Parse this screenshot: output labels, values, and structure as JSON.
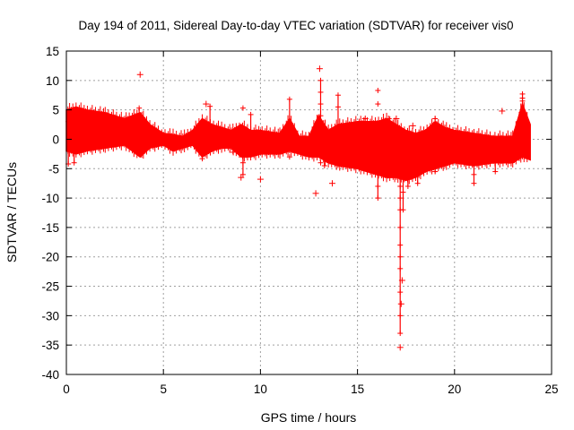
{
  "chart_data": {
    "type": "scatter",
    "title": "Day 194 of 2011, Sidereal Day-to-day VTEC variation (SDTVAR) for receiver vis0",
    "xlabel": "GPS time / hours",
    "ylabel": "SDTVAR / TECUs",
    "xlim": [
      0,
      25
    ],
    "ylim": [
      -40,
      15
    ],
    "xticks": [
      0,
      5,
      10,
      15,
      20,
      25
    ],
    "yticks": [
      15,
      10,
      5,
      0,
      -5,
      -10,
      -15,
      -20,
      -25,
      -30,
      -35,
      -40
    ],
    "grid": true,
    "marker": "+",
    "color": "#ff0000",
    "series": [
      {
        "name": "SDTVAR",
        "envelope": {
          "x": [
            0,
            0.5,
            1,
            2,
            3,
            3.8,
            4.3,
            5,
            5.5,
            6,
            6.5,
            7,
            7.5,
            8,
            8.5,
            9,
            9.5,
            10,
            11,
            11.5,
            12,
            12.5,
            13,
            13.5,
            14,
            15,
            15.5,
            16,
            16.5,
            17,
            17.5,
            18,
            18.5,
            19,
            19.5,
            20,
            21,
            22,
            23,
            23.5,
            23.9
          ],
          "upper": [
            5,
            5.5,
            5,
            4.5,
            3.5,
            4.5,
            2.5,
            1,
            0.8,
            0.5,
            1.5,
            3.5,
            2.5,
            2,
            1.5,
            2.5,
            1.5,
            1.5,
            1,
            3.5,
            0.5,
            0.5,
            4,
            1.5,
            2.5,
            3,
            3,
            3,
            3.5,
            2.5,
            1.5,
            1,
            1.5,
            3,
            2,
            1.5,
            1,
            0.5,
            0.5,
            6,
            2.5
          ],
          "lower": [
            -2,
            -2.5,
            -2,
            -1.5,
            -1,
            -3,
            -1.5,
            -1,
            -2,
            -1.5,
            -1,
            -3,
            -2,
            -1.5,
            -1.5,
            -3,
            -3,
            -2.5,
            -2.5,
            -2,
            -2.5,
            -3,
            -3,
            -4,
            -4.5,
            -5,
            -5.5,
            -6,
            -6.5,
            -6.5,
            -7,
            -6.5,
            -5.5,
            -5,
            -4.5,
            -4,
            -4.5,
            -4,
            -4,
            -3,
            -3.5
          ]
        },
        "spikes": [
          {
            "x": 0.1,
            "values": [
              -4.2,
              3.0
            ]
          },
          {
            "x": 0.4,
            "values": [
              -4.0
            ]
          },
          {
            "x": 3.75,
            "values": [
              5.3,
              -2.5
            ]
          },
          {
            "x": 7.0,
            "values": [
              -3.3
            ]
          },
          {
            "x": 7.4,
            "values": [
              5.6
            ]
          },
          {
            "x": 8.8,
            "values": [
              -2.0
            ]
          },
          {
            "x": 9.1,
            "values": [
              5.3,
              -6.0,
              -4.0
            ]
          },
          {
            "x": 9.5,
            "values": [
              4.2
            ]
          },
          {
            "x": 11.5,
            "values": [
              6.8,
              -3.0
            ]
          },
          {
            "x": 12.5,
            "values": [
              -2.8
            ]
          },
          {
            "x": 13.1,
            "values": [
              10,
              8,
              6,
              4,
              -4
            ]
          },
          {
            "x": 13.3,
            "values": [
              -4.5
            ]
          },
          {
            "x": 14.0,
            "values": [
              7.5,
              5.5
            ]
          },
          {
            "x": 16.05,
            "values": [
              8.3,
              6,
              -8,
              -10
            ]
          },
          {
            "x": 17.2,
            "values": [
              -8,
              -10,
              -12,
              -15,
              -18,
              -20,
              -22,
              -26,
              -30,
              -33
            ]
          },
          {
            "x": 17.35,
            "values": [
              -9,
              -12
            ]
          },
          {
            "x": 17.6,
            "values": [
              -8.0
            ]
          },
          {
            "x": 18.1,
            "values": [
              -7.5
            ]
          },
          {
            "x": 19.0,
            "values": [
              3.5,
              -5.5
            ]
          },
          {
            "x": 21.0,
            "values": [
              -7.5,
              -6
            ]
          },
          {
            "x": 22.1,
            "values": [
              -5.5
            ]
          },
          {
            "x": 23.5,
            "values": [
              7.7,
              7,
              6.5
            ]
          }
        ],
        "outliers": [
          {
            "x": 3.8,
            "y": 11
          },
          {
            "x": 7.2,
            "y": 6
          },
          {
            "x": 8.6,
            "y": -2.2
          },
          {
            "x": 9.0,
            "y": -6.5
          },
          {
            "x": 10.0,
            "y": -6.8
          },
          {
            "x": 12.85,
            "y": -9.2
          },
          {
            "x": 13.05,
            "y": 12
          },
          {
            "x": 13.7,
            "y": -7.5
          },
          {
            "x": 15.4,
            "y": 3.5
          },
          {
            "x": 16.6,
            "y": 3.5
          },
          {
            "x": 17.0,
            "y": 3.5
          },
          {
            "x": 17.2,
            "y": -35.4
          },
          {
            "x": 17.25,
            "y": -28
          },
          {
            "x": 17.3,
            "y": -24
          },
          {
            "x": 17.85,
            "y": 2.3
          },
          {
            "x": 22.45,
            "y": 4.8
          }
        ]
      }
    ]
  }
}
